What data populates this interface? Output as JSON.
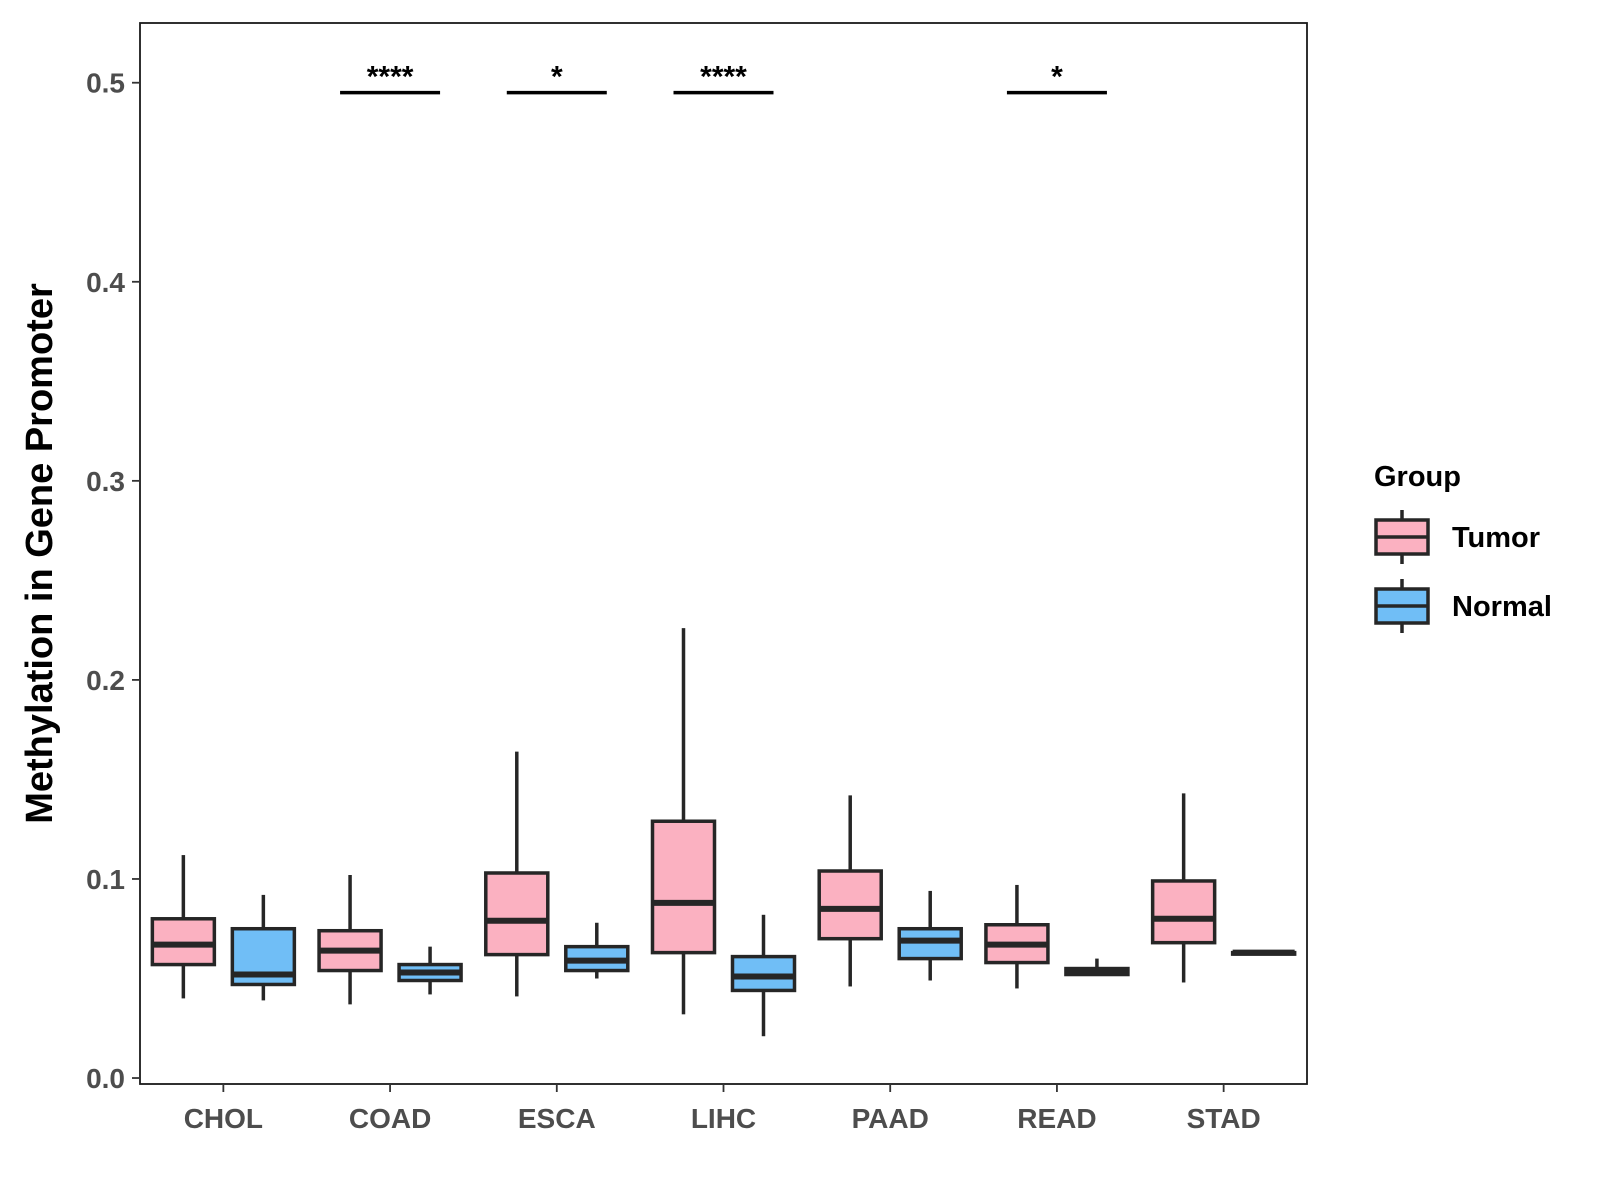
{
  "chart_data": {
    "type": "boxplot",
    "title": "",
    "xlabel": "",
    "ylabel": "Methylation in Gene Promoter",
    "ylim": [
      -0.003,
      0.53
    ],
    "yticks": [
      "0.0",
      "0.1",
      "0.2",
      "0.3",
      "0.4",
      "0.5"
    ],
    "grid": false,
    "legend_position": "right",
    "legend": {
      "title": "Group",
      "entries": [
        {
          "name": "Tumor",
          "color": "#FBB1C1"
        },
        {
          "name": "Normal",
          "color": "#70BEF6"
        }
      ]
    },
    "categories": [
      "CHOL",
      "COAD",
      "ESCA",
      "LIHC",
      "PAAD",
      "READ",
      "STAD"
    ],
    "series": [
      {
        "name": "Tumor",
        "color": "#FBB1C1",
        "boxes": [
          {
            "min": 0.04,
            "q1": 0.057,
            "median": 0.067,
            "q3": 0.08,
            "max": 0.112
          },
          {
            "min": 0.037,
            "q1": 0.054,
            "median": 0.064,
            "q3": 0.074,
            "max": 0.102
          },
          {
            "min": 0.041,
            "q1": 0.062,
            "median": 0.079,
            "q3": 0.103,
            "max": 0.164
          },
          {
            "min": 0.032,
            "q1": 0.063,
            "median": 0.088,
            "q3": 0.129,
            "max": 0.226
          },
          {
            "min": 0.046,
            "q1": 0.07,
            "median": 0.085,
            "q3": 0.104,
            "max": 0.142
          },
          {
            "min": 0.045,
            "q1": 0.058,
            "median": 0.067,
            "q3": 0.077,
            "max": 0.097
          },
          {
            "min": 0.048,
            "q1": 0.068,
            "median": 0.08,
            "q3": 0.099,
            "max": 0.143
          }
        ]
      },
      {
        "name": "Normal",
        "color": "#70BEF6",
        "boxes": [
          {
            "min": 0.039,
            "q1": 0.047,
            "median": 0.052,
            "q3": 0.075,
            "max": 0.092
          },
          {
            "min": 0.042,
            "q1": 0.049,
            "median": 0.053,
            "q3": 0.057,
            "max": 0.066
          },
          {
            "min": 0.05,
            "q1": 0.054,
            "median": 0.059,
            "q3": 0.066,
            "max": 0.078
          },
          {
            "min": 0.021,
            "q1": 0.044,
            "median": 0.051,
            "q3": 0.061,
            "max": 0.082
          },
          {
            "min": 0.049,
            "q1": 0.06,
            "median": 0.069,
            "q3": 0.075,
            "max": 0.094
          },
          {
            "min": 0.052,
            "q1": 0.052,
            "median": 0.054,
            "q3": 0.055,
            "max": 0.06
          },
          {
            "min": 0.063,
            "q1": 0.063,
            "median": 0.063,
            "q3": 0.063,
            "max": 0.063
          }
        ]
      }
    ],
    "annotations": [
      {
        "category": "COAD",
        "label": "****",
        "y": 0.495
      },
      {
        "category": "ESCA",
        "label": "*",
        "y": 0.495
      },
      {
        "category": "LIHC",
        "label": "****",
        "y": 0.495
      },
      {
        "category": "READ",
        "label": "*",
        "y": 0.495
      }
    ]
  }
}
